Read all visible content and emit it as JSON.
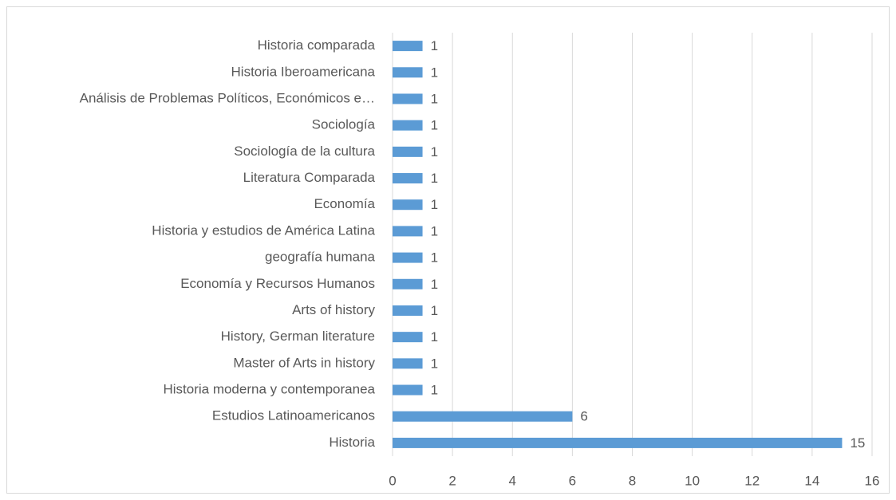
{
  "chart_data": {
    "type": "barh",
    "categories": [
      "Historia comparada",
      "Historia Iberoamericana",
      "Análisis de Problemas Políticos, Económicos e…",
      "Sociología",
      "Sociología de la cultura",
      "Literatura Comparada",
      "Economía",
      "Historia y estudios de América Latina",
      "geografía humana",
      "Economía y Recursos Humanos",
      "Arts of history",
      "History, German literature",
      "Master of Arts in history",
      "Historia moderna y contemporanea",
      "Estudios Latinoamericanos",
      "Historia"
    ],
    "values": [
      1,
      1,
      1,
      1,
      1,
      1,
      1,
      1,
      1,
      1,
      1,
      1,
      1,
      1,
      6,
      15
    ],
    "color": "#5b9bd5",
    "xlim": [
      0,
      16
    ],
    "xticks": [
      0,
      2,
      4,
      6,
      8,
      10,
      12,
      14,
      16
    ],
    "grid": true
  }
}
